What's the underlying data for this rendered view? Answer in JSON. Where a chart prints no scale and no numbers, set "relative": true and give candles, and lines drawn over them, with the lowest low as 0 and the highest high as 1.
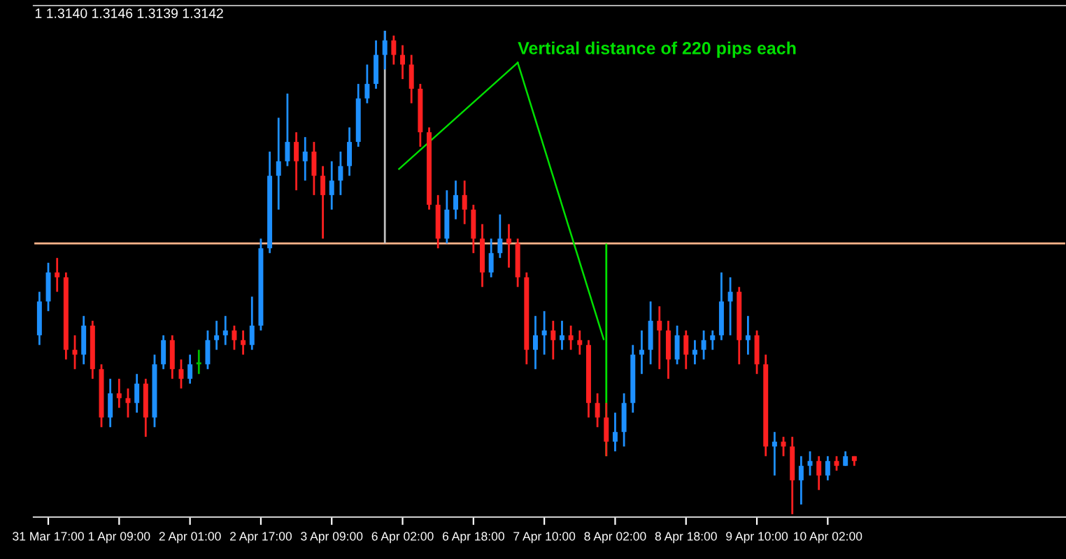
{
  "chart_data": {
    "type": "candlestick",
    "relative": true,
    "title": "1 1.3140 1.3146 1.3139 1.3142",
    "annotations": [
      "Vertical distance of 220 pips each"
    ],
    "categories": [
      null,
      "31 Mar 17:00",
      null,
      null,
      null,
      null,
      null,
      null,
      null,
      "1 Apr 09:00",
      null,
      null,
      null,
      null,
      null,
      null,
      null,
      "2 Apr 01:00",
      null,
      null,
      null,
      null,
      null,
      null,
      null,
      "2 Apr 17:00",
      null,
      null,
      null,
      null,
      null,
      null,
      null,
      "3 Apr 09:00",
      null,
      null,
      null,
      null,
      null,
      null,
      null,
      "6 Apr 02:00",
      null,
      null,
      null,
      null,
      null,
      null,
      null,
      "6 Apr 18:00",
      null,
      null,
      null,
      null,
      null,
      null,
      null,
      "7 Apr 10:00",
      null,
      null,
      null,
      null,
      null,
      null,
      null,
      "8 Apr 02:00",
      null,
      null,
      null,
      null,
      null,
      null,
      null,
      "8 Apr 18:00",
      null,
      null,
      null,
      null,
      null,
      null,
      null,
      "9 Apr 10:00",
      null,
      null,
      null,
      null,
      null,
      null,
      null,
      "10 Apr 02:00",
      null,
      null,
      null
    ],
    "ohlc": [
      [
        0.37,
        0.46,
        0.35,
        0.44
      ],
      [
        0.44,
        0.52,
        0.42,
        0.5
      ],
      [
        0.5,
        0.53,
        0.46,
        0.49
      ],
      [
        0.49,
        0.5,
        0.32,
        0.34
      ],
      [
        0.34,
        0.37,
        0.3,
        0.33
      ],
      [
        0.33,
        0.41,
        0.31,
        0.39
      ],
      [
        0.39,
        0.4,
        0.28,
        0.3
      ],
      [
        0.3,
        0.31,
        0.18,
        0.2
      ],
      [
        0.2,
        0.28,
        0.18,
        0.25
      ],
      [
        0.25,
        0.28,
        0.22,
        0.24
      ],
      [
        0.24,
        0.26,
        0.2,
        0.23
      ],
      [
        0.23,
        0.29,
        0.21,
        0.27
      ],
      [
        0.27,
        0.28,
        0.16,
        0.2
      ],
      [
        0.2,
        0.33,
        0.18,
        0.31
      ],
      [
        0.31,
        0.37,
        0.3,
        0.36
      ],
      [
        0.36,
        0.37,
        0.28,
        0.3
      ],
      [
        0.3,
        0.32,
        0.26,
        0.28
      ],
      [
        0.28,
        0.33,
        0.27,
        0.31
      ],
      [
        0.31,
        0.34,
        0.29,
        0.31
      ],
      [
        0.31,
        0.38,
        0.3,
        0.36
      ],
      [
        0.36,
        0.4,
        0.34,
        0.37
      ],
      [
        0.37,
        0.41,
        0.35,
        0.38
      ],
      [
        0.38,
        0.39,
        0.34,
        0.36
      ],
      [
        0.36,
        0.38,
        0.33,
        0.35
      ],
      [
        0.35,
        0.45,
        0.34,
        0.39
      ],
      [
        0.39,
        0.57,
        0.38,
        0.55
      ],
      [
        0.55,
        0.75,
        0.54,
        0.7
      ],
      [
        0.7,
        0.82,
        0.63,
        0.73
      ],
      [
        0.73,
        0.87,
        0.72,
        0.77
      ],
      [
        0.77,
        0.79,
        0.67,
        0.73
      ],
      [
        0.73,
        0.78,
        0.69,
        0.75
      ],
      [
        0.75,
        0.77,
        0.66,
        0.7
      ],
      [
        0.7,
        0.72,
        0.57,
        0.66
      ],
      [
        0.66,
        0.73,
        0.63,
        0.69
      ],
      [
        0.69,
        0.75,
        0.66,
        0.72
      ],
      [
        0.72,
        0.8,
        0.7,
        0.77
      ],
      [
        0.77,
        0.89,
        0.76,
        0.86
      ],
      [
        0.86,
        0.93,
        0.85,
        0.89
      ],
      [
        0.89,
        0.98,
        0.88,
        0.95
      ],
      [
        0.95,
        1,
        0.92,
        0.98
      ],
      [
        0.98,
        0.99,
        0.93,
        0.95
      ],
      [
        0.95,
        0.97,
        0.9,
        0.93
      ],
      [
        0.93,
        0.95,
        0.85,
        0.88
      ],
      [
        0.88,
        0.89,
        0.76,
        0.79
      ],
      [
        0.79,
        0.8,
        0.63,
        0.64
      ],
      [
        0.64,
        0.66,
        0.55,
        0.57
      ],
      [
        0.57,
        0.67,
        0.56,
        0.63
      ],
      [
        0.63,
        0.69,
        0.61,
        0.66
      ],
      [
        0.66,
        0.69,
        0.6,
        0.63
      ],
      [
        0.63,
        0.64,
        0.54,
        0.57
      ],
      [
        0.57,
        0.6,
        0.47,
        0.5
      ],
      [
        0.5,
        0.57,
        0.49,
        0.54
      ],
      [
        0.54,
        0.62,
        0.53,
        0.57
      ],
      [
        0.57,
        0.6,
        0.51,
        0.56
      ],
      [
        0.56,
        0.57,
        0.47,
        0.49
      ],
      [
        0.49,
        0.5,
        0.31,
        0.34
      ],
      [
        0.34,
        0.41,
        0.3,
        0.37
      ],
      [
        0.37,
        0.42,
        0.33,
        0.38
      ],
      [
        0.38,
        0.4,
        0.32,
        0.36
      ],
      [
        0.36,
        0.4,
        0.34,
        0.37
      ],
      [
        0.37,
        0.39,
        0.34,
        0.36
      ],
      [
        0.36,
        0.38,
        0.33,
        0.35
      ],
      [
        0.35,
        0.36,
        0.2,
        0.23
      ],
      [
        0.23,
        0.25,
        0.18,
        0.2
      ],
      [
        0.2,
        0.23,
        0.12,
        0.15
      ],
      [
        0.15,
        0.21,
        0.13,
        0.17
      ],
      [
        0.17,
        0.25,
        0.14,
        0.23
      ],
      [
        0.23,
        0.35,
        0.21,
        0.33
      ],
      [
        0.33,
        0.38,
        0.29,
        0.34
      ],
      [
        0.34,
        0.44,
        0.31,
        0.4
      ],
      [
        0.4,
        0.43,
        0.3,
        0.38
      ],
      [
        0.38,
        0.4,
        0.28,
        0.32
      ],
      [
        0.32,
        0.39,
        0.31,
        0.37
      ],
      [
        0.37,
        0.38,
        0.3,
        0.33
      ],
      [
        0.33,
        0.36,
        0.31,
        0.34
      ],
      [
        0.34,
        0.38,
        0.32,
        0.36
      ],
      [
        0.36,
        0.38,
        0.34,
        0.37
      ],
      [
        0.37,
        0.5,
        0.36,
        0.44
      ],
      [
        0.44,
        0.49,
        0.37,
        0.46
      ],
      [
        0.46,
        0.47,
        0.31,
        0.36
      ],
      [
        0.36,
        0.41,
        0.33,
        0.37
      ],
      [
        0.37,
        0.38,
        0.29,
        0.31
      ],
      [
        0.31,
        0.33,
        0.12,
        0.14
      ],
      [
        0.14,
        0.17,
        0.08,
        0.15
      ],
      [
        0.15,
        0.16,
        0.12,
        0.14
      ],
      [
        0.14,
        0.16,
        0,
        0.07
      ],
      [
        0.07,
        0.12,
        0.02,
        0.1
      ],
      [
        0.1,
        0.13,
        0.08,
        0.11
      ],
      [
        0.11,
        0.12,
        0.05,
        0.08
      ],
      [
        0.08,
        0.12,
        0.07,
        0.11
      ],
      [
        0.11,
        0.12,
        0.09,
        0.1
      ],
      [
        0.1,
        0.13,
        0.1,
        0.12
      ],
      [
        0.12,
        0.12,
        0.1,
        0.11
      ]
    ],
    "ref_lines": [
      {
        "axis": "y",
        "value": 0.56,
        "color": "#ffb38a"
      }
    ]
  }
}
